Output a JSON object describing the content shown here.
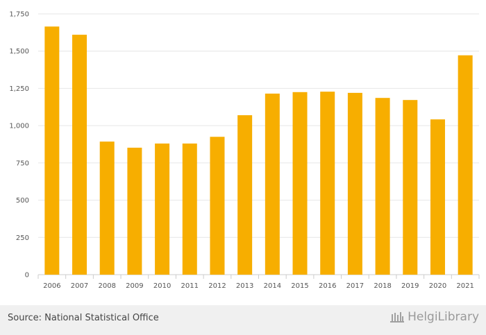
{
  "chart_data": {
    "type": "bar",
    "categories": [
      "2006",
      "2007",
      "2008",
      "2009",
      "2010",
      "2011",
      "2012",
      "2013",
      "2014",
      "2015",
      "2016",
      "2017",
      "2018",
      "2019",
      "2020",
      "2021"
    ],
    "values": [
      1665,
      1610,
      893,
      852,
      880,
      880,
      925,
      1070,
      1215,
      1225,
      1228,
      1220,
      1186,
      1172,
      1042,
      1472
    ],
    "ylim": [
      0,
      1750
    ],
    "yticks": [
      0,
      250,
      500,
      750,
      1000,
      1250,
      1500,
      1750
    ],
    "ytick_labels": [
      "0",
      "250",
      "500",
      "750",
      "1,000",
      "1,250",
      "1,500",
      "1,750"
    ],
    "bar_color": "#f7ae00",
    "grid": true,
    "title": "",
    "xlabel": "",
    "ylabel": ""
  },
  "footer": {
    "source": "Source: National Statistical Office",
    "logo_text": "HelgiLibrary"
  }
}
